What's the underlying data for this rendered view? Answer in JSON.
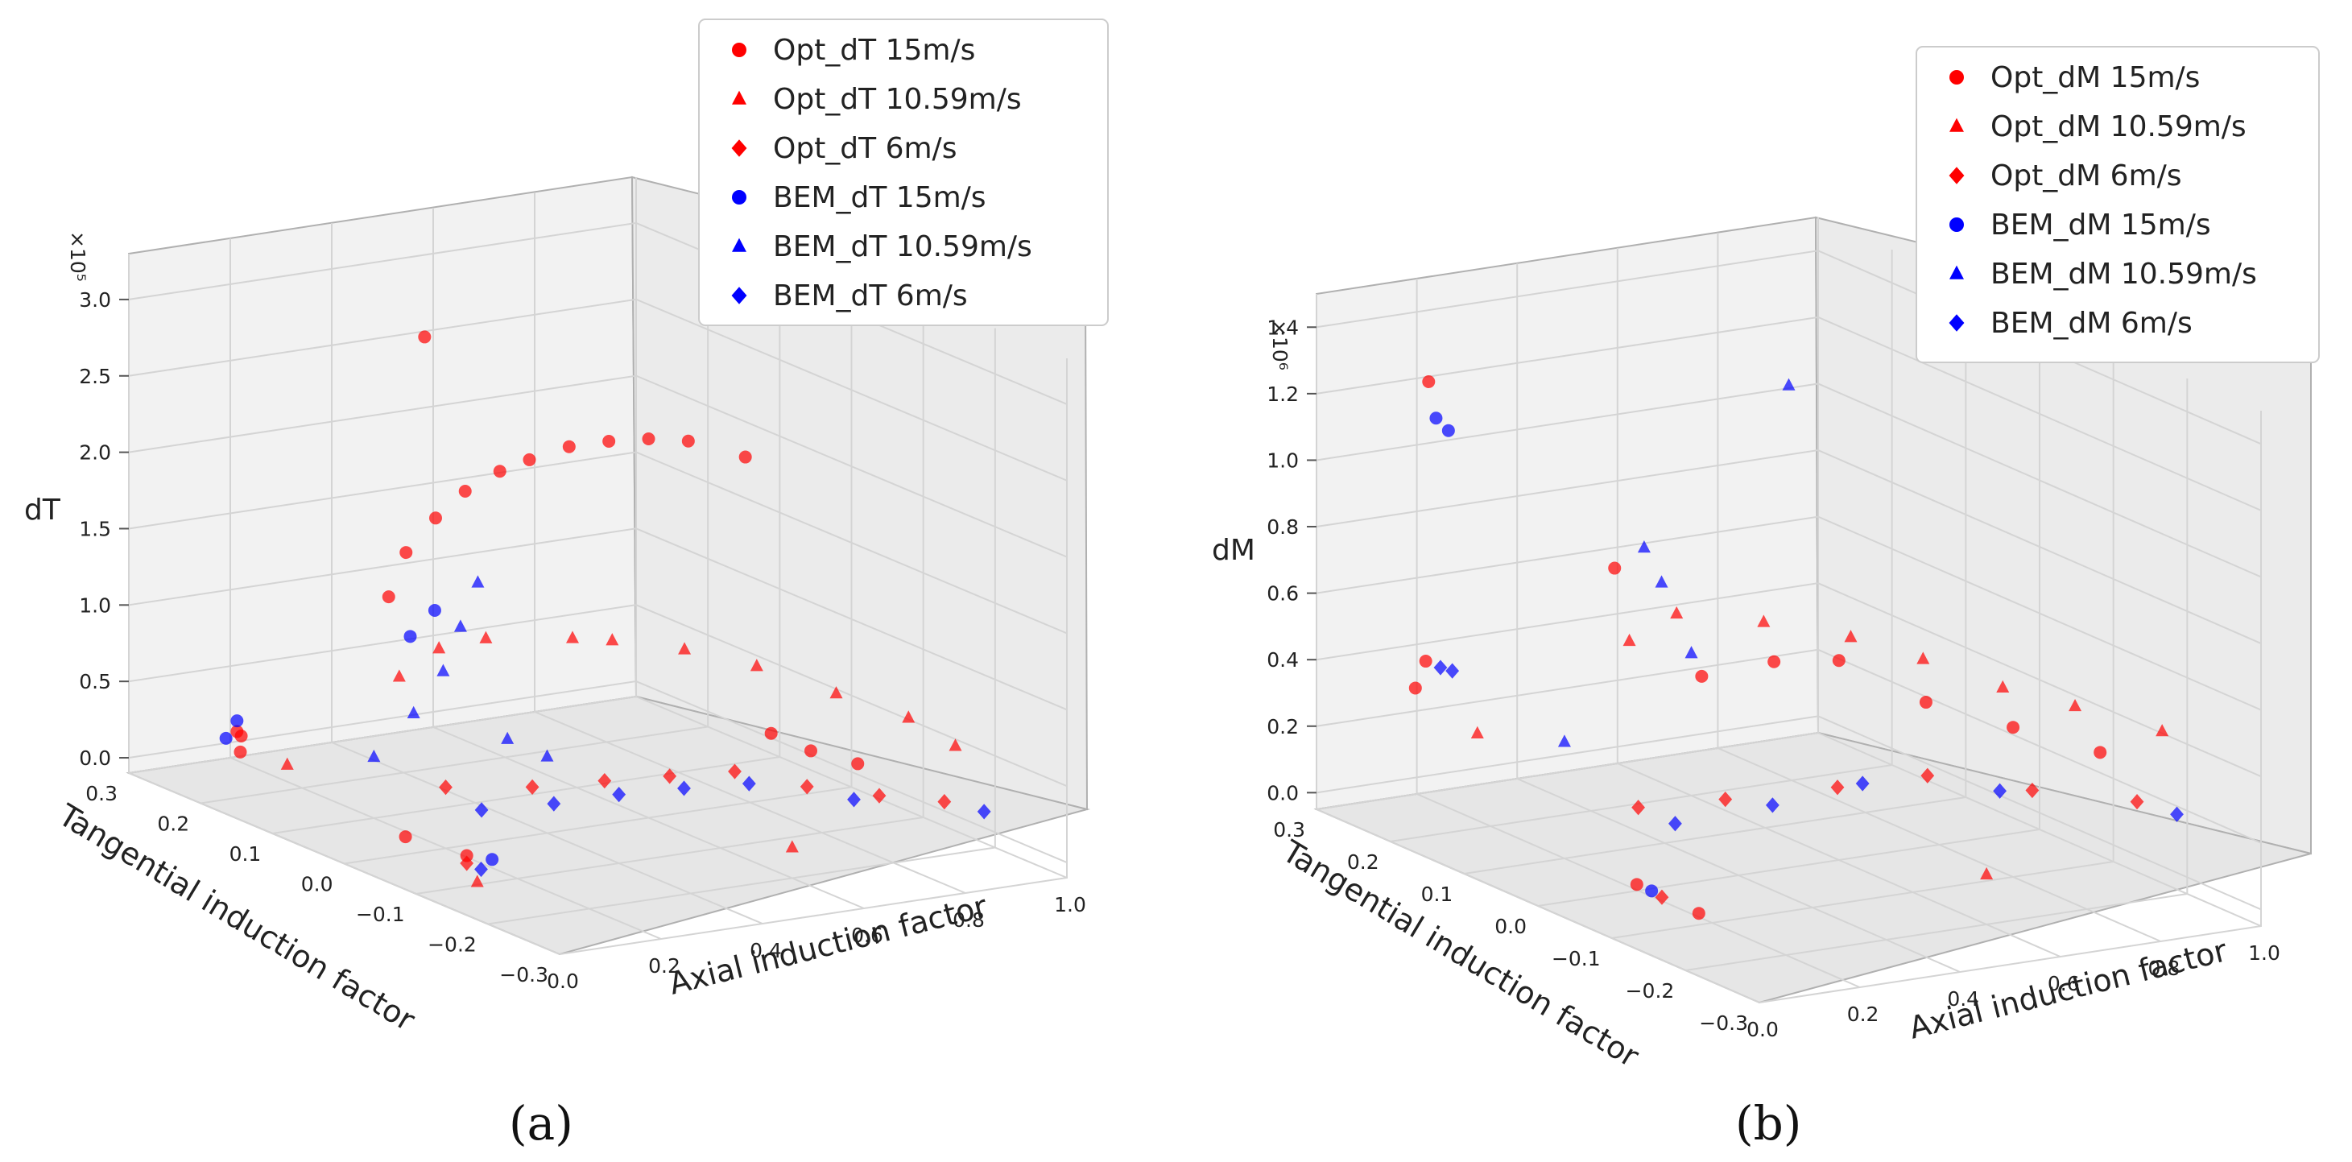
{
  "chart_data": [
    {
      "type": "scatter",
      "panel_label": "(a)",
      "title": "",
      "xlabel": "Axial induction factor",
      "ylabel": "Tangential induction factor",
      "zlabel": "dT",
      "z_exponent": "×10⁵",
      "xlim": [
        0,
        1.0
      ],
      "ylim": [
        -0.3,
        0.3
      ],
      "zlim": [
        -0.1,
        3.3
      ],
      "x_ticks": [
        "0.0",
        "0.2",
        "0.4",
        "0.6",
        "0.8",
        "1.0"
      ],
      "y_ticks": [
        "−0.3",
        "−0.2",
        "−0.1",
        "0.0",
        "0.1",
        "0.2",
        "0.3"
      ],
      "z_ticks": [
        "0.0",
        "0.5",
        "1.0",
        "1.5",
        "2.0",
        "2.5",
        "3.0"
      ],
      "legend": [
        "Opt_dT 15m/s",
        "Opt_dT 10.59m/s",
        "Opt_dT 6m/s",
        "BEM_dT 15m/s",
        "BEM_dT 10.59m/s",
        "BEM_dT 6m/s"
      ],
      "series": [
        {
          "name": "Opt_dT 15m/s",
          "marker": "circle",
          "color": "#ff0000",
          "points": [
            [
              0.05,
              0.18,
              0.25
            ],
            [
              0.08,
              0.2,
              0.3
            ],
            [
              0.1,
              0.22,
              0.28
            ],
            [
              0.3,
              0.15,
              1.2
            ],
            [
              0.32,
              0.14,
              1.5
            ],
            [
              0.35,
              0.12,
              1.75
            ],
            [
              0.38,
              0.1,
              1.95
            ],
            [
              0.42,
              0.08,
              2.1
            ],
            [
              0.45,
              0.06,
              2.2
            ],
            [
              0.5,
              0.04,
              2.3
            ],
            [
              0.55,
              0.02,
              2.35
            ],
            [
              0.6,
              0.0,
              2.38
            ],
            [
              0.65,
              -0.02,
              2.38
            ],
            [
              0.72,
              -0.05,
              2.3
            ],
            [
              0.3,
              0.1,
              3.0
            ],
            [
              0.7,
              -0.1,
              0.6
            ],
            [
              0.75,
              -0.12,
              0.5
            ],
            [
              0.8,
              -0.15,
              0.45
            ],
            [
              0.05,
              -0.05,
              0.15
            ],
            [
              0.1,
              -0.1,
              0.1
            ]
          ]
        },
        {
          "name": "Opt_dT 10.59m/s",
          "marker": "triangle",
          "color": "#ff0000",
          "points": [
            [
              0.1,
              0.15,
              0.2
            ],
            [
              0.25,
              0.1,
              0.8
            ],
            [
              0.3,
              0.08,
              1.0
            ],
            [
              0.35,
              0.05,
              1.1
            ],
            [
              0.45,
              0.0,
              1.15
            ],
            [
              0.5,
              -0.02,
              1.15
            ],
            [
              0.6,
              -0.05,
              1.1
            ],
            [
              0.7,
              -0.08,
              1.0
            ],
            [
              0.8,
              -0.12,
              0.85
            ],
            [
              0.9,
              -0.15,
              0.7
            ],
            [
              0.95,
              -0.18,
              0.55
            ],
            [
              0.05,
              -0.15,
              0.05
            ],
            [
              0.6,
              -0.2,
              0.1
            ]
          ]
        },
        {
          "name": "Opt_dT 6m/s",
          "marker": "diamond",
          "color": "#ff0000",
          "points": [
            [
              0.1,
              -0.1,
              0.05
            ],
            [
              0.2,
              0.0,
              0.3
            ],
            [
              0.3,
              -0.05,
              0.35
            ],
            [
              0.4,
              -0.08,
              0.4
            ],
            [
              0.5,
              -0.1,
              0.42
            ],
            [
              0.6,
              -0.12,
              0.44
            ],
            [
              0.7,
              -0.15,
              0.35
            ],
            [
              0.8,
              -0.18,
              0.3
            ],
            [
              0.9,
              -0.2,
              0.25
            ]
          ]
        },
        {
          "name": "BEM_dT 15m/s",
          "marker": "circle",
          "color": "#0000ff",
          "points": [
            [
              0.05,
              0.2,
              0.3
            ],
            [
              0.1,
              0.22,
              0.35
            ],
            [
              0.3,
              0.12,
              1.0
            ],
            [
              0.32,
              0.1,
              1.2
            ],
            [
              0.15,
              -0.1,
              0.05
            ]
          ]
        },
        {
          "name": "BEM_dT 10.59m/s",
          "marker": "triangle",
          "color": "#0000ff",
          "points": [
            [
              0.2,
              0.1,
              0.3
            ],
            [
              0.25,
              0.08,
              0.6
            ],
            [
              0.28,
              0.06,
              0.9
            ],
            [
              0.3,
              0.05,
              1.2
            ],
            [
              0.32,
              0.04,
              1.5
            ],
            [
              0.35,
              0.02,
              0.5
            ],
            [
              0.4,
              0.0,
              0.4
            ]
          ]
        },
        {
          "name": "BEM_dT 6m/s",
          "marker": "diamond",
          "color": "#0000ff",
          "points": [
            [
              0.1,
              -0.12,
              0.05
            ],
            [
              0.2,
              -0.05,
              0.25
            ],
            [
              0.3,
              -0.08,
              0.3
            ],
            [
              0.4,
              -0.1,
              0.35
            ],
            [
              0.5,
              -0.12,
              0.38
            ],
            [
              0.6,
              -0.14,
              0.4
            ],
            [
              0.75,
              -0.18,
              0.3
            ],
            [
              0.95,
              -0.22,
              0.2
            ]
          ]
        }
      ]
    },
    {
      "type": "scatter",
      "panel_label": "(b)",
      "title": "",
      "xlabel": "Axial induction factor",
      "ylabel": "Tangential induction factor",
      "zlabel": "dM",
      "z_exponent": "×10⁶",
      "xlim": [
        0,
        1.0
      ],
      "ylim": [
        -0.3,
        0.3
      ],
      "zlim": [
        -0.05,
        1.5
      ],
      "x_ticks": [
        "0.0",
        "0.2",
        "0.4",
        "0.6",
        "0.8",
        "1.0"
      ],
      "y_ticks": [
        "−0.3",
        "−0.2",
        "−0.1",
        "0.0",
        "0.1",
        "0.2",
        "0.3"
      ],
      "z_ticks": [
        "0.0",
        "0.2",
        "0.4",
        "0.6",
        "0.8",
        "1.0",
        "1.2",
        "1.4"
      ],
      "legend": [
        "Opt_dM 15m/s",
        "Opt_dM 10.59m/s",
        "Opt_dM 6m/s",
        "BEM_dM 15m/s",
        "BEM_dM 10.59m/s",
        "BEM_dM 6m/s"
      ],
      "series": [
        {
          "name": "Opt_dM 15m/s",
          "marker": "circle",
          "color": "#ff0000",
          "points": [
            [
              0.05,
              0.2,
              0.4
            ],
            [
              0.1,
              0.22,
              0.45
            ],
            [
              0.15,
              0.25,
              1.25
            ],
            [
              0.3,
              0.1,
              0.8
            ],
            [
              0.4,
              0.05,
              0.5
            ],
            [
              0.5,
              0.02,
              0.55
            ],
            [
              0.6,
              0.0,
              0.55
            ],
            [
              0.7,
              -0.05,
              0.45
            ],
            [
              0.8,
              -0.1,
              0.4
            ],
            [
              0.9,
              -0.15,
              0.35
            ],
            [
              0.05,
              -0.1,
              0.1
            ],
            [
              0.1,
              -0.15,
              0.05
            ]
          ]
        },
        {
          "name": "Opt_dM 10.59m/s",
          "marker": "triangle",
          "color": "#ff0000",
          "points": [
            [
              0.1,
              0.15,
              0.3
            ],
            [
              0.3,
              0.08,
              0.6
            ],
            [
              0.35,
              0.05,
              0.7
            ],
            [
              0.45,
              0.0,
              0.7
            ],
            [
              0.55,
              -0.05,
              0.68
            ],
            [
              0.65,
              -0.08,
              0.62
            ],
            [
              0.75,
              -0.12,
              0.55
            ],
            [
              0.85,
              -0.15,
              0.5
            ],
            [
              0.95,
              -0.2,
              0.45
            ],
            [
              0.6,
              -0.2,
              0.1
            ]
          ]
        },
        {
          "name": "Opt_dM 6m/s",
          "marker": "diamond",
          "color": "#ff0000",
          "points": [
            [
              0.1,
              -0.1,
              0.05
            ],
            [
              0.2,
              0.0,
              0.2
            ],
            [
              0.3,
              -0.05,
              0.25
            ],
            [
              0.45,
              -0.1,
              0.3
            ],
            [
              0.6,
              -0.12,
              0.32
            ],
            [
              0.75,
              -0.16,
              0.28
            ],
            [
              0.9,
              -0.2,
              0.25
            ]
          ]
        },
        {
          "name": "BEM_dM 15m/s",
          "marker": "circle",
          "color": "#0000ff",
          "points": [
            [
              0.15,
              0.24,
              1.15
            ],
            [
              0.16,
              0.23,
              1.12
            ],
            [
              0.05,
              -0.12,
              0.1
            ]
          ]
        },
        {
          "name": "BEM_dM 10.59m/s",
          "marker": "triangle",
          "color": "#0000ff",
          "points": [
            [
              0.3,
              0.06,
              0.9
            ],
            [
              0.32,
              0.05,
              0.8
            ],
            [
              0.35,
              0.03,
              0.6
            ],
            [
              0.5,
              0.0,
              1.4
            ],
            [
              0.2,
              0.1,
              0.3
            ]
          ]
        },
        {
          "name": "BEM_dM 6m/s",
          "marker": "diamond",
          "color": "#0000ff",
          "points": [
            [
              0.05,
              0.15,
              0.5
            ],
            [
              0.1,
              0.2,
              0.45
            ],
            [
              0.2,
              -0.05,
              0.2
            ],
            [
              0.35,
              -0.08,
              0.25
            ],
            [
              0.5,
              -0.1,
              0.3
            ],
            [
              0.7,
              -0.15,
              0.28
            ],
            [
              0.95,
              -0.22,
              0.22
            ]
          ]
        }
      ]
    }
  ],
  "colors": {
    "opt": "#ff0000",
    "bem": "#0000ff",
    "pane": "#f2f2f2",
    "grid": "#d9d9d9"
  }
}
